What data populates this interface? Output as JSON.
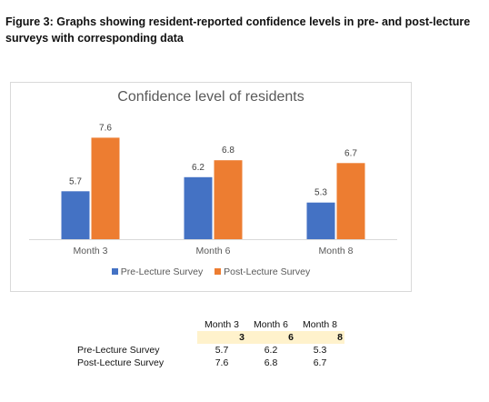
{
  "caption": "Figure 3: Graphs showing resident-reported confidence levels in pre- and post-lecture surveys with corresponding data",
  "chart_data": {
    "type": "bar",
    "title": "Confidence level of residents",
    "categories": [
      "Month 3",
      "Month 6",
      "Month 8"
    ],
    "series": [
      {
        "name": "Pre-Lecture Survey",
        "values": [
          5.7,
          6.2,
          5.3
        ],
        "color": "#4472c4"
      },
      {
        "name": "Post-Lecture Survey",
        "values": [
          7.6,
          6.8,
          6.7
        ],
        "color": "#ed7d31"
      }
    ],
    "ylim": [
      4,
      8
    ],
    "legend_position": "bottom",
    "grid": false
  },
  "table": {
    "columns": [
      "Month 3",
      "Month 6",
      "Month 8"
    ],
    "index_row": [
      "3",
      "6",
      "8"
    ],
    "rows": [
      {
        "label": "Pre-Lecture Survey",
        "values": [
          "5.7",
          "6.2",
          "5.3"
        ]
      },
      {
        "label": "Post-Lecture Survey",
        "values": [
          "7.6",
          "6.8",
          "6.7"
        ]
      }
    ]
  }
}
